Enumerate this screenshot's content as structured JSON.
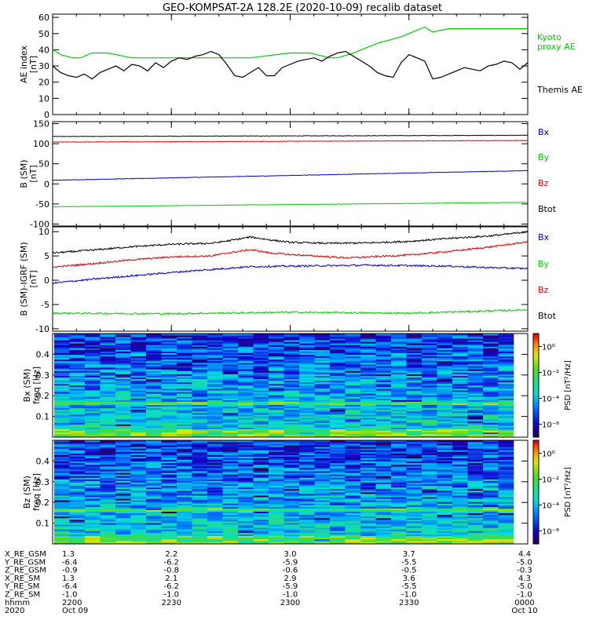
{
  "title": "GEO-KOMPSAT-2A 128.2E (2020-10-09) recalib dataset",
  "colors": {
    "black": "#000000",
    "red": "#d40000",
    "blue": "#0000c8",
    "green": "#00cc00"
  },
  "time_ticks": [
    0,
    30,
    60,
    90,
    120
  ],
  "chart_data": [
    {
      "type": "line",
      "name": "ae-panel",
      "ylabel": [
        "AE index",
        "[nT]"
      ],
      "ylim": [
        0,
        62
      ],
      "y_ticks": [
        0,
        10,
        20,
        30,
        40,
        50,
        60
      ],
      "legend": [
        "Kyoto proxy AE",
        "Themis AE"
      ],
      "series": [
        {
          "name": "Kyoto proxy AE",
          "color": "#00cc00",
          "x": [
            0,
            2,
            5,
            7,
            10,
            14,
            20,
            28,
            40,
            50,
            60,
            65,
            70,
            72,
            76,
            82,
            88,
            92,
            94,
            96,
            100,
            120
          ],
          "y": [
            40,
            37,
            35,
            35,
            38,
            38,
            35,
            35,
            35,
            35,
            38,
            38,
            35,
            35,
            38,
            44,
            48,
            52,
            54,
            51,
            53,
            53
          ]
        },
        {
          "name": "Themis AE",
          "color": "#000000",
          "x": [
            0,
            2,
            4,
            6,
            8,
            10,
            12,
            14,
            16,
            18,
            20,
            22,
            24,
            26,
            28,
            30,
            32,
            34,
            36,
            38,
            40,
            42,
            44,
            46,
            48,
            50,
            52,
            54,
            56,
            58,
            60,
            62,
            64,
            66,
            68,
            70,
            72,
            74,
            76,
            78,
            80,
            82,
            84,
            86,
            88,
            90,
            92,
            94,
            96,
            98,
            100,
            102,
            104,
            106,
            108,
            110,
            112,
            114,
            116,
            118,
            120
          ],
          "y": [
            30,
            26,
            24,
            23,
            25,
            22,
            26,
            28,
            30,
            27,
            31,
            30,
            27,
            32,
            29,
            33,
            35,
            34,
            36,
            37,
            39,
            37,
            31,
            24,
            23,
            26,
            29,
            24,
            24,
            29,
            31,
            33,
            34,
            35,
            33,
            36,
            38,
            39,
            36,
            33,
            30,
            26,
            24,
            23,
            32,
            37,
            35,
            33,
            22,
            23,
            25,
            27,
            29,
            28,
            27,
            30,
            31,
            33,
            32,
            28,
            32
          ]
        }
      ]
    },
    {
      "type": "line",
      "name": "b-sm-panel",
      "ylabel": [
        "B (SM)",
        "[nT]"
      ],
      "ylim": [
        -105,
        155
      ],
      "y_ticks": [
        -100,
        -50,
        0,
        50,
        100,
        150
      ],
      "legend": [
        "Bx",
        "By",
        "Bz",
        "Btot"
      ],
      "legend_colors": [
        "#0000c8",
        "#00cc00",
        "#d40000",
        "#000000"
      ],
      "series": [
        {
          "name": "black",
          "color": "#000000",
          "x": [
            0,
            120
          ],
          "y": [
            118,
            121
          ]
        },
        {
          "name": "red",
          "color": "#d40000",
          "x": [
            0,
            120
          ],
          "y": [
            104,
            108
          ]
        },
        {
          "name": "blue",
          "color": "#0000c8",
          "x": [
            0,
            120
          ],
          "y": [
            9,
            33
          ]
        },
        {
          "name": "green",
          "color": "#00cc00",
          "x": [
            0,
            120
          ],
          "y": [
            -57,
            -46
          ]
        }
      ]
    },
    {
      "type": "line",
      "name": "b-igrf-panel",
      "ylabel": [
        "B (SM)-IGRF (SM)",
        "[nT]"
      ],
      "ylim": [
        -10.5,
        11
      ],
      "y_ticks": [
        -10,
        -5,
        0,
        5,
        10
      ],
      "legend": [
        "Bx",
        "By",
        "Bz",
        "Btot"
      ],
      "legend_colors": [
        "#0000c8",
        "#00cc00",
        "#d40000",
        "#000000"
      ],
      "series": [
        {
          "name": "black",
          "color": "#000000",
          "x": [
            0,
            10,
            20,
            30,
            40,
            45,
            50,
            55,
            60,
            70,
            80,
            90,
            100,
            110,
            115,
            120
          ],
          "y": [
            5.6,
            6.2,
            6.9,
            7.4,
            7.6,
            8.2,
            8.9,
            8.3,
            7.8,
            7.6,
            7.7,
            8.0,
            8.6,
            9.1,
            9.5,
            10.0
          ]
        },
        {
          "name": "red",
          "color": "#d40000",
          "x": [
            0,
            10,
            20,
            30,
            40,
            45,
            50,
            55,
            60,
            70,
            75,
            80,
            90,
            100,
            110,
            120
          ],
          "y": [
            2.7,
            3.4,
            4.2,
            4.8,
            5.0,
            5.7,
            6.3,
            5.6,
            5.3,
            4.8,
            4.6,
            4.8,
            5.2,
            5.9,
            6.8,
            7.9
          ]
        },
        {
          "name": "blue",
          "color": "#0000c8",
          "x": [
            0,
            10,
            20,
            30,
            40,
            50,
            60,
            70,
            80,
            90,
            100,
            110,
            120
          ],
          "y": [
            -0.6,
            0.2,
            0.9,
            1.6,
            2.2,
            2.8,
            2.9,
            3.0,
            3.1,
            3.0,
            2.9,
            2.6,
            2.4
          ]
        },
        {
          "name": "green",
          "color": "#00cc00",
          "x": [
            0,
            30,
            60,
            90,
            120
          ],
          "y": [
            -6.8,
            -6.9,
            -6.6,
            -6.8,
            -6.1
          ]
        }
      ]
    },
    {
      "type": "heatmap",
      "name": "bx-spectrogram",
      "ylabel": [
        "Bx (SM)",
        "freq [Hz]"
      ],
      "ylim": [
        0,
        0.5
      ],
      "y_ticks": [
        0.1,
        0.2,
        0.3,
        0.4
      ],
      "time_bins": 30,
      "freq_bins": 64,
      "colorbar": {
        "label": "PSD [nT²/Hz]",
        "ticks": [
          "10⁰",
          "10⁻²",
          "10⁻⁴",
          "10⁻⁶"
        ],
        "range_log10": [
          -7,
          1
        ]
      }
    },
    {
      "type": "heatmap",
      "name": "bz-spectrogram",
      "ylabel": [
        "Bz (SM)",
        "freq [Hz]"
      ],
      "ylim": [
        0,
        0.5
      ],
      "y_ticks": [
        0.1,
        0.2,
        0.3,
        0.4
      ],
      "time_bins": 30,
      "freq_bins": 64,
      "colorbar": {
        "label": "PSD [nT²/Hz]",
        "ticks": [
          "10⁰",
          "10⁻²",
          "10⁻⁴",
          "10⁻⁶"
        ],
        "range_log10": [
          -7,
          1
        ]
      }
    }
  ],
  "ephemeris": {
    "rows": [
      {
        "label": "X_RE_GSM",
        "values": [
          "1.3",
          "2.2",
          "3.0",
          "3.7",
          "4.4"
        ]
      },
      {
        "label": "Y_RE_GSM",
        "values": [
          "-6.4",
          "-6.2",
          "-5.9",
          "-5.5",
          "-5.0"
        ]
      },
      {
        "label": "Z_RE_GSM",
        "values": [
          "-0.9",
          "-0.8",
          "-0.6",
          "-0.5",
          "-0.3"
        ]
      },
      {
        "label": "X_RE_SM",
        "values": [
          "1.3",
          "2.1",
          "2.9",
          "3.6",
          "4.3"
        ]
      },
      {
        "label": "Y_RE_SM",
        "values": [
          "-6.4",
          "-6.2",
          "-5.9",
          "-5.5",
          "-5.0"
        ]
      },
      {
        "label": "Z_RE_SM",
        "values": [
          "-1.0",
          "-1.0",
          "-1.0",
          "-1.0",
          "-1.0"
        ]
      },
      {
        "label": "hhmm",
        "values": [
          "2200",
          "2230",
          "2300",
          "2330",
          "0000"
        ]
      },
      {
        "label": "2020",
        "values": [
          "Oct 09",
          "",
          "",
          "",
          "Oct 10"
        ]
      }
    ]
  }
}
